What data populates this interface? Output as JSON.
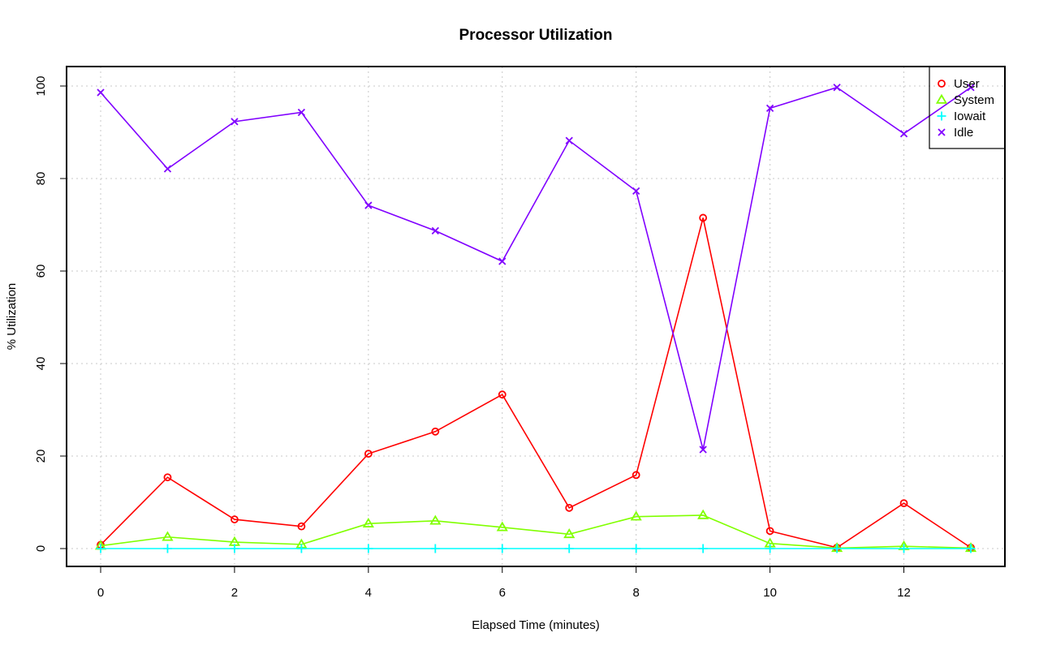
{
  "chart_data": {
    "type": "line",
    "title": "Processor Utilization",
    "xlabel": "Elapsed Time (minutes)",
    "ylabel": "% Utilization",
    "xlim": [
      0,
      13
    ],
    "ylim": [
      0,
      100
    ],
    "x_ticks": [
      0,
      2,
      4,
      6,
      8,
      10,
      12
    ],
    "y_ticks": [
      0,
      20,
      40,
      60,
      80,
      100
    ],
    "grid": true,
    "legend_position": "top-right",
    "x": [
      0,
      1,
      2,
      3,
      4,
      5,
      6,
      7,
      8,
      9,
      10,
      11,
      12,
      13
    ],
    "series": [
      {
        "name": "User",
        "color": "#ff0000",
        "marker": "circle",
        "values": [
          0.8,
          15.4,
          6.3,
          4.8,
          20.5,
          25.3,
          33.3,
          8.8,
          15.9,
          71.5,
          3.8,
          0.2,
          9.8,
          0.2
        ]
      },
      {
        "name": "System",
        "color": "#80ff00",
        "marker": "triangle",
        "values": [
          0.6,
          2.5,
          1.4,
          0.9,
          5.4,
          6.0,
          4.6,
          3.1,
          6.9,
          7.2,
          1.1,
          0.1,
          0.5,
          0.1
        ]
      },
      {
        "name": "Iowait",
        "color": "#00ffff",
        "marker": "plus",
        "values": [
          0,
          0,
          0,
          0,
          0,
          0,
          0,
          0,
          0,
          0,
          0,
          0,
          0,
          0
        ]
      },
      {
        "name": "Idle",
        "color": "#8000ff",
        "marker": "cross",
        "values": [
          98.6,
          82.1,
          92.3,
          94.3,
          74.2,
          68.7,
          62.1,
          88.2,
          77.3,
          21.4,
          95.2,
          99.7,
          89.7,
          99.7
        ]
      }
    ]
  }
}
